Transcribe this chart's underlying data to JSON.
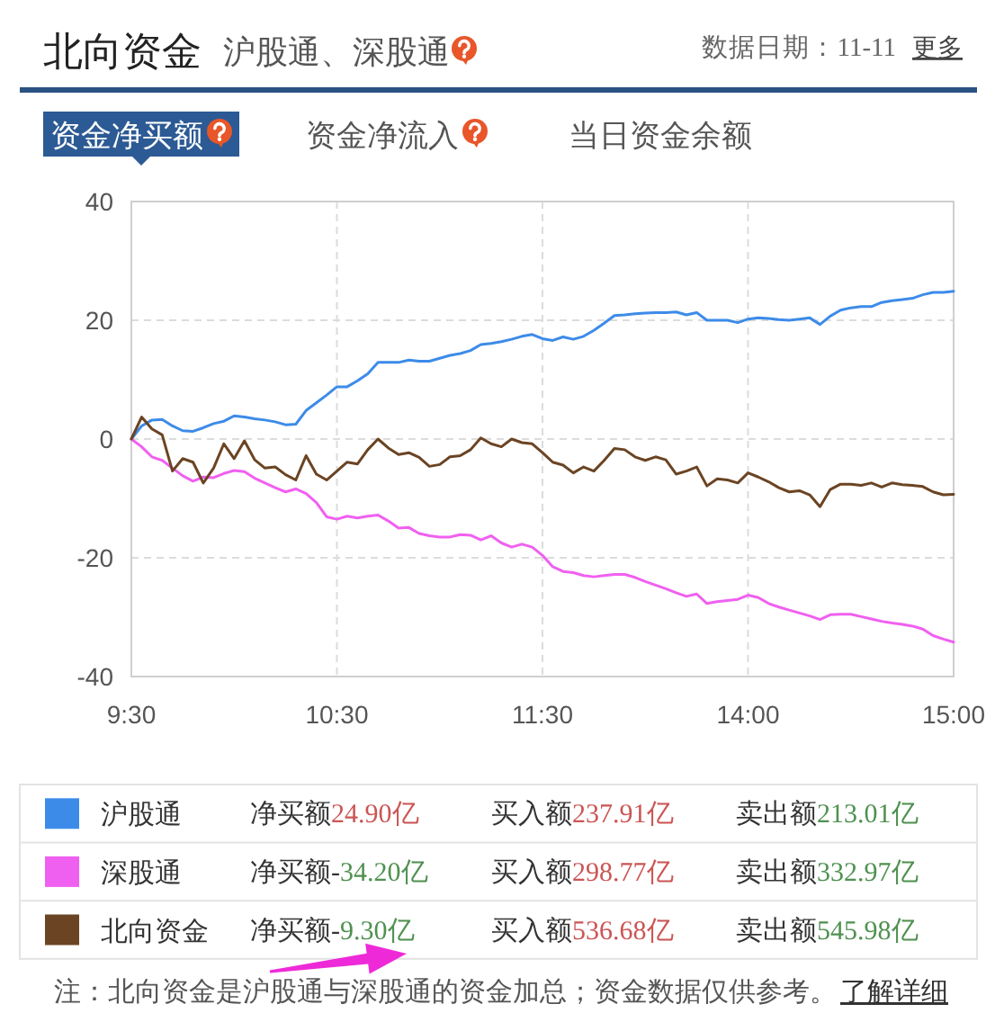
{
  "chart_data": {
    "type": "line",
    "title": "北向资金",
    "subtitle": "沪股通、深股通",
    "annotations": [
      "数据日期：11-11",
      "更多",
      "资金净买额",
      "资金净流入",
      "当日资金余额",
      "净买额24.90亿",
      "买入额237.91亿",
      "卖出额213.01亿",
      "净买额-34.20亿",
      "买入额298.77亿",
      "卖出额332.97亿",
      "净买额-9.30亿",
      "买入额536.68亿",
      "卖出额545.98亿",
      "注：北向资金是沪股通与深股通的资金加总；资金数据仅供参考。",
      "了解详细"
    ],
    "categories": [
      "9:30",
      null,
      null,
      null,
      null,
      null,
      null,
      null,
      null,
      null,
      null,
      null,
      null,
      null,
      null,
      null,
      null,
      null,
      null,
      null,
      "10:30",
      null,
      null,
      null,
      null,
      null,
      null,
      null,
      null,
      null,
      null,
      null,
      null,
      null,
      null,
      null,
      null,
      null,
      null,
      null,
      "11:30",
      null,
      null,
      null,
      null,
      null,
      null,
      null,
      null,
      null,
      null,
      null,
      null,
      null,
      null,
      null,
      null,
      null,
      null,
      null,
      "14:00",
      null,
      null,
      null,
      null,
      null,
      null,
      null,
      null,
      null,
      null,
      null,
      null,
      null,
      null,
      null,
      null,
      null,
      null,
      null,
      "15:00"
    ],
    "ylim": [
      -40,
      40
    ],
    "yticks": [
      -40,
      -20,
      0,
      20,
      40
    ],
    "grid": true,
    "legend": "bottom",
    "series": [
      {
        "name": "沪股通",
        "color": "#3d8be8",
        "values": [
          0,
          2.2,
          3.2,
          3.3,
          2.2,
          1.4,
          1.3,
          1.9,
          2.6,
          3.0,
          3.9,
          3.7,
          3.4,
          3.2,
          2.9,
          2.4,
          2.5,
          4.8,
          6.1,
          7.4,
          8.8,
          8.8,
          9.8,
          11.0,
          12.9,
          12.9,
          12.9,
          13.3,
          13.1,
          13.1,
          13.6,
          14.1,
          14.4,
          14.9,
          15.9,
          16.1,
          16.4,
          16.8,
          17.3,
          17.6,
          16.9,
          16.6,
          17.2,
          16.8,
          17.3,
          18.3,
          19.5,
          20.8,
          20.9,
          21.1,
          21.2,
          21.3,
          21.3,
          21.4,
          20.9,
          21.3,
          20.0,
          20.0,
          20.0,
          19.6,
          20.2,
          20.4,
          20.3,
          20.1,
          20.0,
          20.2,
          20.4,
          19.3,
          20.7,
          21.7,
          22.1,
          22.3,
          22.3,
          23.0,
          23.3,
          23.5,
          23.7,
          24.3,
          24.7,
          24.7,
          24.9
        ]
      },
      {
        "name": "深股通",
        "color": "#f060f0",
        "values": [
          0,
          -1.3,
          -3.0,
          -3.6,
          -4.9,
          -6.2,
          -7.1,
          -6.4,
          -6.5,
          -5.8,
          -5.3,
          -5.5,
          -6.6,
          -7.4,
          -8.2,
          -8.9,
          -8.4,
          -9.2,
          -10.7,
          -13.1,
          -13.5,
          -13.0,
          -13.3,
          -13.0,
          -12.8,
          -13.8,
          -15.0,
          -14.9,
          -15.9,
          -16.3,
          -16.5,
          -16.5,
          -16.1,
          -16.2,
          -17.0,
          -16.3,
          -17.5,
          -18.2,
          -17.7,
          -18.2,
          -19.6,
          -21.5,
          -22.3,
          -22.5,
          -23.0,
          -23.2,
          -23.0,
          -22.8,
          -22.8,
          -23.3,
          -24.0,
          -24.6,
          -25.2,
          -25.9,
          -26.5,
          -26.1,
          -27.7,
          -27.4,
          -27.2,
          -27.0,
          -26.3,
          -26.7,
          -27.7,
          -28.3,
          -28.8,
          -29.3,
          -29.8,
          -30.4,
          -29.6,
          -29.5,
          -29.5,
          -29.9,
          -30.3,
          -30.7,
          -31.0,
          -31.2,
          -31.5,
          -32.0,
          -33.1,
          -33.7,
          -34.2
        ]
      },
      {
        "name": "北向资金",
        "color": "#6b4423",
        "values": [
          0,
          3.7,
          1.7,
          0.7,
          -5.4,
          -3.3,
          -3.9,
          -7.4,
          -4.9,
          -0.8,
          -3.3,
          -0.3,
          -3.5,
          -4.9,
          -4.7,
          -6.0,
          -6.9,
          -2.8,
          -5.9,
          -6.9,
          -5.4,
          -3.9,
          -4.2,
          -1.8,
          0,
          -1.5,
          -2.6,
          -2.3,
          -3.1,
          -4.6,
          -4.3,
          -3.0,
          -2.8,
          -1.8,
          0.2,
          -0.8,
          -1.3,
          0,
          -0.6,
          -0.8,
          -2.3,
          -3.9,
          -4.4,
          -5.7,
          -4.7,
          -5.4,
          -3.6,
          -1.6,
          -1.8,
          -3.0,
          -3.6,
          -3.0,
          -3.5,
          -5.9,
          -5.4,
          -4.7,
          -7.9,
          -6.7,
          -6.9,
          -7.4,
          -5.7,
          -6.4,
          -7.2,
          -8.2,
          -8.9,
          -8.7,
          -9.4,
          -11.4,
          -8.5,
          -7.6,
          -7.6,
          -7.8,
          -7.4,
          -8.1,
          -7.4,
          -7.7,
          -7.8,
          -8.0,
          -8.9,
          -9.4,
          -9.3
        ]
      }
    ]
  }
}
